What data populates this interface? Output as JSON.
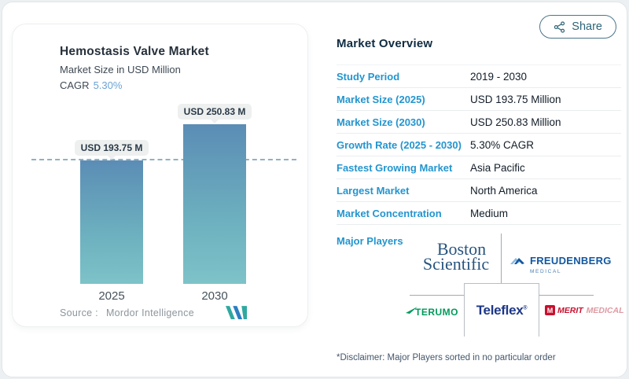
{
  "header": {
    "share_label": "Share"
  },
  "chart_data": {
    "type": "bar",
    "title": "Hemostasis Valve Market",
    "subtitle": "Market Size in USD Million",
    "cagr_label": "CAGR",
    "cagr_value": "5.30%",
    "categories": [
      "2025",
      "2030"
    ],
    "values": [
      193.75,
      250.83
    ],
    "value_labels": [
      "USD 193.75 M",
      "USD 250.83 M"
    ],
    "unit": "USD Million",
    "ylim": [
      0,
      250.83
    ],
    "reference_line_at": 193.75,
    "reference_line_style": "dashed",
    "legend": "none",
    "grid": "off",
    "bar_gradient_top": "#5b8db5",
    "bar_gradient_bottom": "#7dc3c8",
    "source_label": "Source :",
    "source_value": "Mordor Intelligence"
  },
  "overview": {
    "title": "Market Overview",
    "rows": [
      {
        "label": "Study Period",
        "value": "2019 - 2030"
      },
      {
        "label": "Market Size (2025)",
        "value": "USD 193.75 Million"
      },
      {
        "label": "Market Size (2030)",
        "value": "USD 250.83 Million"
      },
      {
        "label": "Growth Rate (2025 - 2030)",
        "value": "5.30% CAGR"
      },
      {
        "label": "Fastest Growing Market",
        "value": "Asia Pacific"
      },
      {
        "label": "Largest Market",
        "value": "North America"
      },
      {
        "label": "Market Concentration",
        "value": "Medium"
      }
    ],
    "major_players": {
      "label": "Major Players",
      "boston": {
        "line1": "Boston",
        "line2": "Scientific"
      },
      "freudenberg": {
        "name": "FREUDENBERG",
        "sub": "MEDICAL"
      },
      "terumo": {
        "name": "TERUMO"
      },
      "teleflex": {
        "name": "Teleflex",
        "reg": "®"
      },
      "merit": {
        "icon_letter": "M",
        "name": "MERIT",
        "sub": "MEDICAL"
      }
    },
    "disclaimer": "*Disclaimer: Major Players sorted in no particular order"
  },
  "colors": {
    "accent_label_blue": "#2395cf",
    "title_navy": "#0f2c42",
    "cagr_blue": "#6ba3d6",
    "share_teal": "#2d6478",
    "mi_logo_teal": "#2fa9a0",
    "mi_logo_blue": "#2b7ec1",
    "dashed_line": "#93b0c3"
  }
}
